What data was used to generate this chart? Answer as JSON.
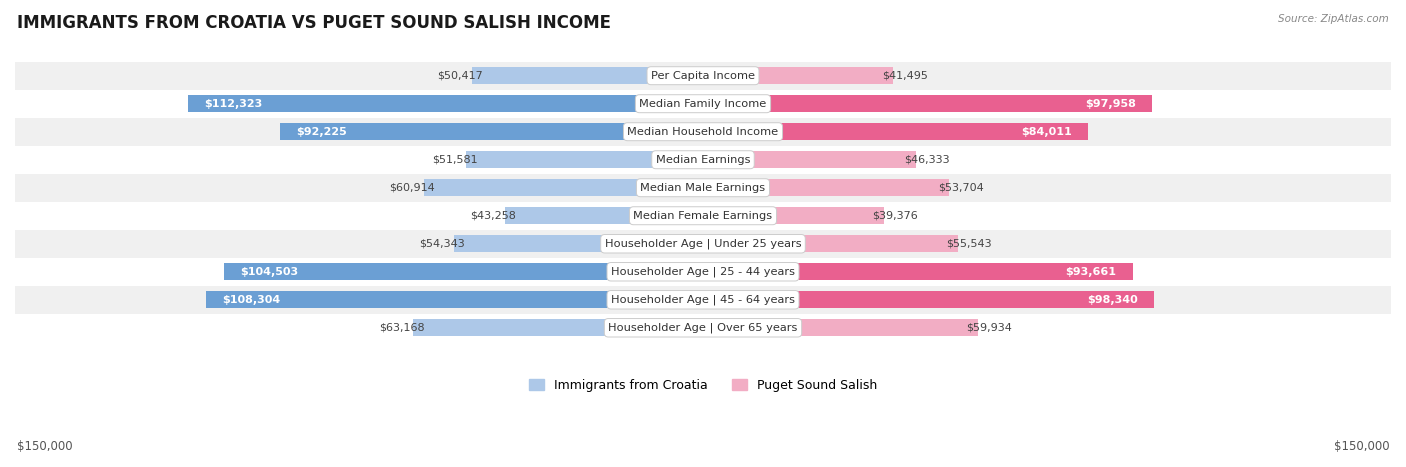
{
  "title": "IMMIGRANTS FROM CROATIA VS PUGET SOUND SALISH INCOME",
  "source": "Source: ZipAtlas.com",
  "categories": [
    "Per Capita Income",
    "Median Family Income",
    "Median Household Income",
    "Median Earnings",
    "Median Male Earnings",
    "Median Female Earnings",
    "Householder Age | Under 25 years",
    "Householder Age | 25 - 44 years",
    "Householder Age | 45 - 64 years",
    "Householder Age | Over 65 years"
  ],
  "croatia_values": [
    50417,
    112323,
    92225,
    51581,
    60914,
    43258,
    54343,
    104503,
    108304,
    63168
  ],
  "salish_values": [
    41495,
    97958,
    84011,
    46333,
    53704,
    39376,
    55543,
    93661,
    98340,
    59934
  ],
  "croatia_labels": [
    "$50,417",
    "$112,323",
    "$92,225",
    "$51,581",
    "$60,914",
    "$43,258",
    "$54,343",
    "$104,503",
    "$108,304",
    "$63,168"
  ],
  "salish_labels": [
    "$41,495",
    "$97,958",
    "$84,011",
    "$46,333",
    "$53,704",
    "$39,376",
    "$55,543",
    "$93,661",
    "$98,340",
    "$59,934"
  ],
  "max_value": 150000,
  "croatia_color_light": "#adc8e8",
  "croatia_color_dark": "#6b9fd4",
  "salish_color_light": "#f2adc4",
  "salish_color_dark": "#e96090",
  "row_color_even": "#f0f0f0",
  "row_color_odd": "#ffffff",
  "text_dark": "#444444",
  "text_white": "#ffffff",
  "legend_croatia": "Immigrants from Croatia",
  "legend_salish": "Puget Sound Salish",
  "dark_threshold": 75000,
  "label_fontsize": 8.0,
  "cat_fontsize": 8.2
}
